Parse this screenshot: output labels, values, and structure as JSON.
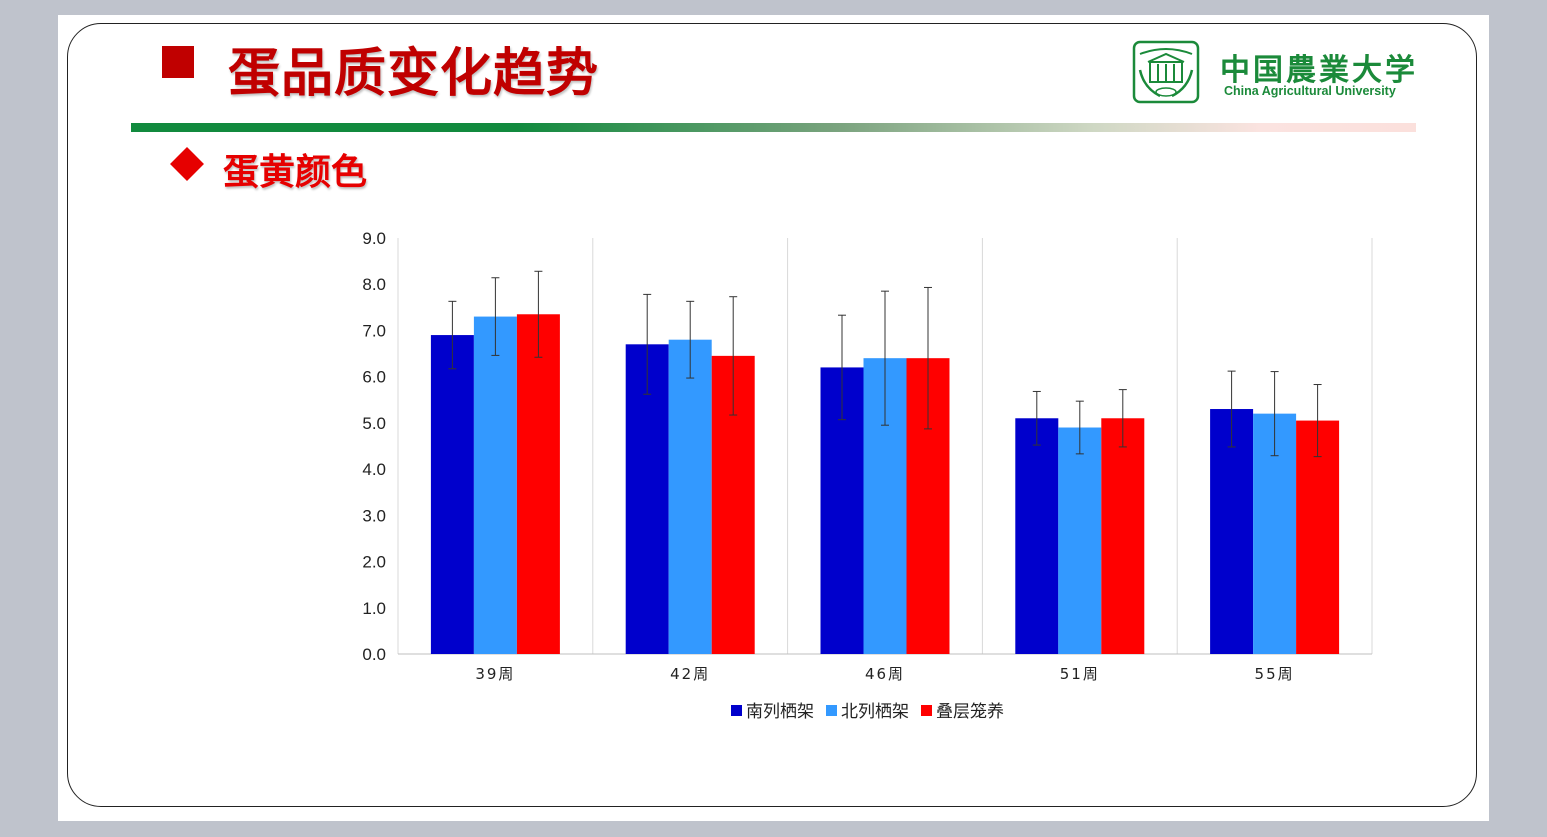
{
  "slide": {
    "title": "蛋品质变化趋势",
    "subtitle": "蛋黄颜色",
    "university_cn": "中国農業大学",
    "university_en": "China Agricultural University",
    "logo_icon": "university-seal-icon",
    "colors": {
      "title": "#c00000",
      "subtitle": "#e60000",
      "brand_green": "#1b8a3a"
    }
  },
  "chart_data": {
    "type": "bar",
    "categories": [
      "39周",
      "42周",
      "46周",
      "51周",
      "55周"
    ],
    "series": [
      {
        "name": "南列栖架",
        "color": "#0000cc",
        "values": [
          6.9,
          6.7,
          6.2,
          5.1,
          5.3
        ],
        "error": [
          0.73,
          1.08,
          1.13,
          0.58,
          0.82
        ]
      },
      {
        "name": "北列栖架",
        "color": "#3399ff",
        "values": [
          7.3,
          6.8,
          6.4,
          4.9,
          5.2
        ],
        "error": [
          0.84,
          0.83,
          1.45,
          0.57,
          0.91
        ]
      },
      {
        "name": "叠层笼养",
        "color": "#ff0000",
        "values": [
          7.35,
          6.45,
          6.4,
          5.1,
          5.05
        ],
        "error": [
          0.93,
          1.28,
          1.53,
          0.62,
          0.78
        ]
      }
    ],
    "ylim": [
      0,
      9
    ],
    "yticks": [
      "0.0",
      "1.0",
      "2.0",
      "3.0",
      "4.0",
      "5.0",
      "6.0",
      "7.0",
      "8.0",
      "9.0"
    ],
    "ytick_values": [
      0,
      1,
      2,
      3,
      4,
      5,
      6,
      7,
      8,
      9
    ],
    "xlabel": "",
    "ylabel": "",
    "grid": "vertical-category-separators",
    "legend_placement": "bottom-center"
  }
}
